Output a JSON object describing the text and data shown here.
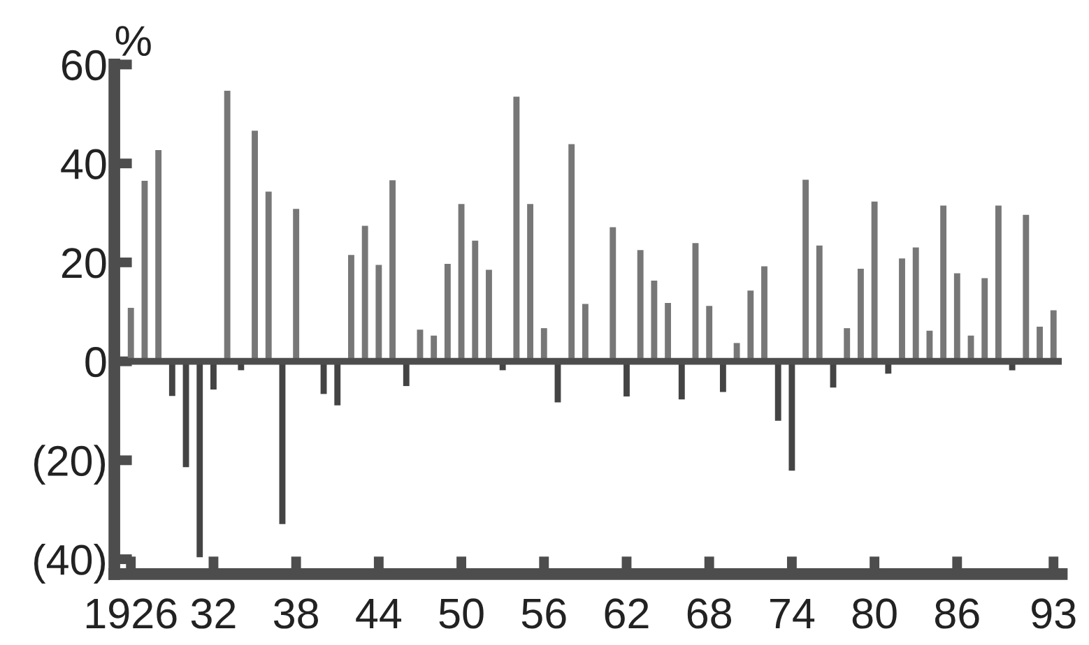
{
  "chart_data": {
    "type": "bar",
    "ylabel": "%",
    "categories": [
      "1926",
      null,
      null,
      null,
      null,
      null,
      "32",
      null,
      null,
      null,
      null,
      null,
      "38",
      null,
      null,
      null,
      null,
      null,
      "44",
      null,
      null,
      null,
      null,
      null,
      "50",
      null,
      null,
      null,
      null,
      null,
      "56",
      null,
      null,
      null,
      null,
      null,
      "62",
      null,
      null,
      null,
      null,
      null,
      "68",
      null,
      null,
      null,
      null,
      null,
      "74",
      null,
      null,
      null,
      null,
      null,
      "80",
      null,
      null,
      null,
      null,
      null,
      "86",
      null,
      null,
      null,
      null,
      null,
      null,
      "93"
    ],
    "values": [
      10.8,
      36.5,
      42.7,
      -7,
      -21.4,
      -39.6,
      -5.7,
      54.7,
      -1.8,
      46.6,
      34.3,
      -32.9,
      30.8,
      null,
      -6.6,
      -8.9,
      21.5,
      27.4,
      19.5,
      36.6,
      -5,
      6.4,
      5.2,
      19.7,
      31.8,
      24.4,
      18.5,
      -1.8,
      53.5,
      31.8,
      6.7,
      -8.3,
      43.9,
      11.6,
      null,
      27.1,
      -7.1,
      22.5,
      16.3,
      11.8,
      -7.7,
      23.9,
      11.2,
      -6.2,
      3.7,
      14.3,
      19.2,
      -12,
      -22.1,
      36.7,
      23.4,
      -5.3,
      6.7,
      18.7,
      32.3,
      -2.5,
      20.8,
      23,
      6.2,
      31.5,
      17.8,
      5.2,
      16.8,
      31.5,
      -1.8,
      29.6,
      7,
      10.3
    ],
    "colors": [
      "#777777",
      "#777777",
      "#777777",
      "#444444",
      "#444444",
      "#444444",
      "#444444",
      "#777777",
      "#444444",
      "#777777",
      "#777777",
      "#444444",
      "#777777",
      "#444444",
      "#444444",
      "#444444",
      "#777777",
      "#777777",
      "#777777",
      "#777777",
      "#444444",
      "#777777",
      "#777777",
      "#777777",
      "#777777",
      "#777777",
      "#777777",
      "#444444",
      "#777777",
      "#777777",
      "#777777",
      "#444444",
      "#777777",
      "#777777",
      "#777777",
      "#777777",
      "#444444",
      "#777777",
      "#777777",
      "#777777",
      "#444444",
      "#777777",
      "#777777",
      "#444444",
      "#777777",
      "#777777",
      "#777777",
      "#444444",
      "#444444",
      "#777777",
      "#777777",
      "#444444",
      "#777777",
      "#777777",
      "#777777",
      "#444444",
      "#777777",
      "#777777",
      "#777777",
      "#777777",
      "#777777",
      "#777777",
      "#777777",
      "#777777",
      "#444444",
      "#777777",
      "#777777",
      "#777777"
    ],
    "ylim": [
      -43,
      60
    ],
    "yticks": [
      {
        "value": -40,
        "label": "(40)"
      },
      {
        "value": -20,
        "label": "(20)"
      },
      0,
      20,
      40,
      60
    ],
    "ref_lines": [
      {
        "axis": "y",
        "value": 0,
        "color": "#4d4d4d"
      }
    ],
    "grid": false,
    "legend": false
  }
}
